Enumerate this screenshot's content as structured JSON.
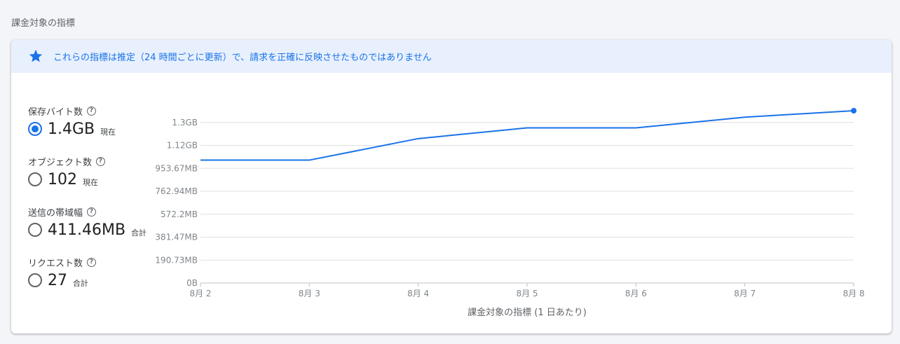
{
  "section_title": "課金対象の指標",
  "banner": {
    "icon": "star-icon",
    "text": "これらの指標は推定（24 時間ごとに更新）で、請求を正確に反映させたものではありません"
  },
  "metrics": [
    {
      "label": "保存バイト数",
      "value": "1.4GB",
      "suffix": "現在",
      "selected": true
    },
    {
      "label": "オブジェクト数",
      "value": "102",
      "suffix": "現在",
      "selected": false
    },
    {
      "label": "送信の帯域幅",
      "value": "411.46MB",
      "suffix": "合計",
      "selected": false
    },
    {
      "label": "リクエスト数",
      "value": "27",
      "suffix": "合計",
      "selected": false
    }
  ],
  "colors": {
    "accent": "#1a73e8",
    "grid": "#e0e0e0"
  },
  "chart_data": {
    "type": "line",
    "x": [
      "8月 2",
      "8月 3",
      "8月 4",
      "8月 5",
      "8月 6",
      "8月 7",
      "8月 8"
    ],
    "y_ticks": [
      "0B",
      "190.73MB",
      "381.47MB",
      "572.2MB",
      "762.94MB",
      "953.67MB",
      "1.12GB",
      "1.3GB"
    ],
    "y_tick_values": [
      0,
      190.73,
      381.47,
      572.2,
      762.94,
      953.67,
      1144.4,
      1335.14
    ],
    "series": [
      {
        "values": [
          1022,
          1022,
          1201,
          1290,
          1290,
          1379,
          1433
        ]
      }
    ],
    "ylim": [
      0,
      1433
    ],
    "xlabel": "課金対象の指標 (1 日あたり)",
    "grid": true
  }
}
